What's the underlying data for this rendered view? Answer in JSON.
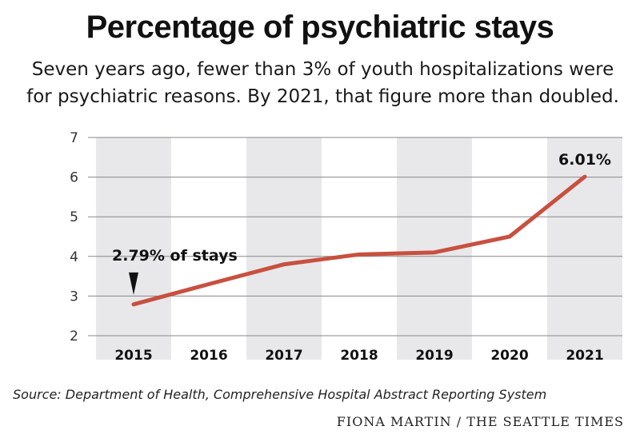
{
  "title": "Percentage of psychiatric stays",
  "subtitle_line1": "Seven years ago, fewer than 3% of youth hospitalizations were",
  "subtitle_line2": "for psychiatric reasons. By 2021, that figure more than doubled.",
  "source": "Source: Department of Health, Comprehensive Hospital Abstract Reporting System",
  "credit": "FIONA MARTIN / THE SEATTLE TIMES",
  "colors": {
    "line": "#c8503f",
    "band": "#e8e8ea",
    "grid": "#888888"
  },
  "chart_data": {
    "type": "line",
    "categories": [
      "2015",
      "2016",
      "2017",
      "2018",
      "2019",
      "2020",
      "2021"
    ],
    "values": [
      2.79,
      3.3,
      3.8,
      4.05,
      4.1,
      4.5,
      6.01
    ],
    "yticks": [
      2,
      3,
      4,
      5,
      6,
      7
    ],
    "ylim": [
      2,
      7
    ],
    "grid": true,
    "annotations": [
      {
        "index": 0,
        "text": "2.79% of stays"
      },
      {
        "index": 6,
        "text": "6.01%"
      }
    ]
  }
}
